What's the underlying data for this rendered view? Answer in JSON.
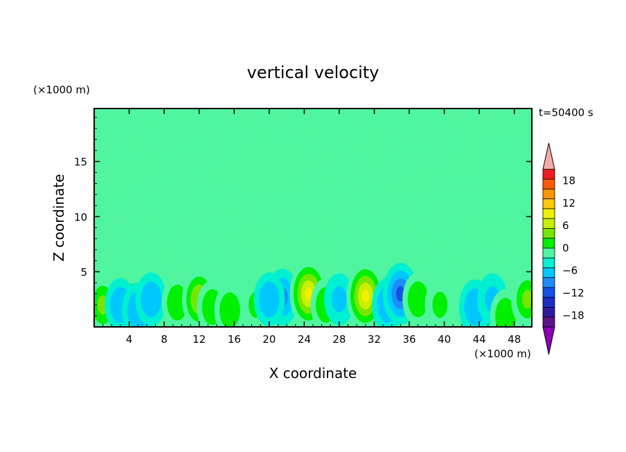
{
  "chart_data": {
    "type": "heatmap",
    "title": "vertical velocity",
    "xlabel": "X coordinate",
    "ylabel": "Z coordinate",
    "x_unit": "(×1000 m)",
    "y_unit": "(×1000 m)",
    "time_label": "t=50400 s",
    "xlim": [
      0,
      50
    ],
    "ylim": [
      0,
      19.8
    ],
    "x_ticks": [
      4,
      8,
      12,
      16,
      20,
      24,
      28,
      32,
      36,
      40,
      44,
      48
    ],
    "y_ticks": [
      5,
      10,
      15
    ],
    "colorbar": {
      "levels": [
        -21,
        -18,
        -15,
        -12,
        -9,
        -6,
        -3,
        0,
        3,
        6,
        9,
        12,
        15,
        18,
        21
      ],
      "labels": [
        18,
        12,
        6,
        0,
        -6,
        -12,
        -18
      ],
      "colors": [
        "#5a148c",
        "#2d1aa0",
        "#1e2dc8",
        "#1450e6",
        "#1e8cff",
        "#00c8ff",
        "#00f0d2",
        "#50f5a0",
        "#00f000",
        "#78e600",
        "#c8f000",
        "#f0f000",
        "#ffc800",
        "#ff9600",
        "#ff5a00",
        "#f01e1e"
      ],
      "upper_extend_color": "#f5aaaa",
      "lower_extend_color": "#8c00b4"
    },
    "background_color": "#50f5a0",
    "features": [
      {
        "x": 1.0,
        "z": 2.0,
        "value": 6
      },
      {
        "x": 4.5,
        "z": 2.3,
        "value": 4
      },
      {
        "x": 3.0,
        "z": 2.0,
        "value": -4
      },
      {
        "x": 5.0,
        "z": 1.5,
        "value": -5
      },
      {
        "x": 6.5,
        "z": 2.5,
        "value": -4
      },
      {
        "x": 9.5,
        "z": 2.2,
        "value": 4
      },
      {
        "x": 12.0,
        "z": 2.5,
        "value": 8
      },
      {
        "x": 13.5,
        "z": 1.8,
        "value": 4
      },
      {
        "x": 15.5,
        "z": 1.5,
        "value": 4
      },
      {
        "x": 18.5,
        "z": 2.0,
        "value": 3
      },
      {
        "x": 21.5,
        "z": 2.7,
        "value": -6
      },
      {
        "x": 20.0,
        "z": 2.5,
        "value": -4
      },
      {
        "x": 24.5,
        "z": 3.0,
        "value": 12
      },
      {
        "x": 26.5,
        "z": 2.0,
        "value": 4
      },
      {
        "x": 28.0,
        "z": 2.5,
        "value": -3
      },
      {
        "x": 31.0,
        "z": 2.8,
        "value": 12
      },
      {
        "x": 33.5,
        "z": 2.0,
        "value": -4
      },
      {
        "x": 35.0,
        "z": 3.0,
        "value": -9
      },
      {
        "x": 37.0,
        "z": 2.5,
        "value": 4
      },
      {
        "x": 39.5,
        "z": 2.0,
        "value": 3
      },
      {
        "x": 43.5,
        "z": 1.8,
        "value": -5
      },
      {
        "x": 45.5,
        "z": 2.5,
        "value": -3
      },
      {
        "x": 47.0,
        "z": 1.0,
        "value": 4
      },
      {
        "x": 49.5,
        "z": 2.5,
        "value": 6
      }
    ]
  }
}
